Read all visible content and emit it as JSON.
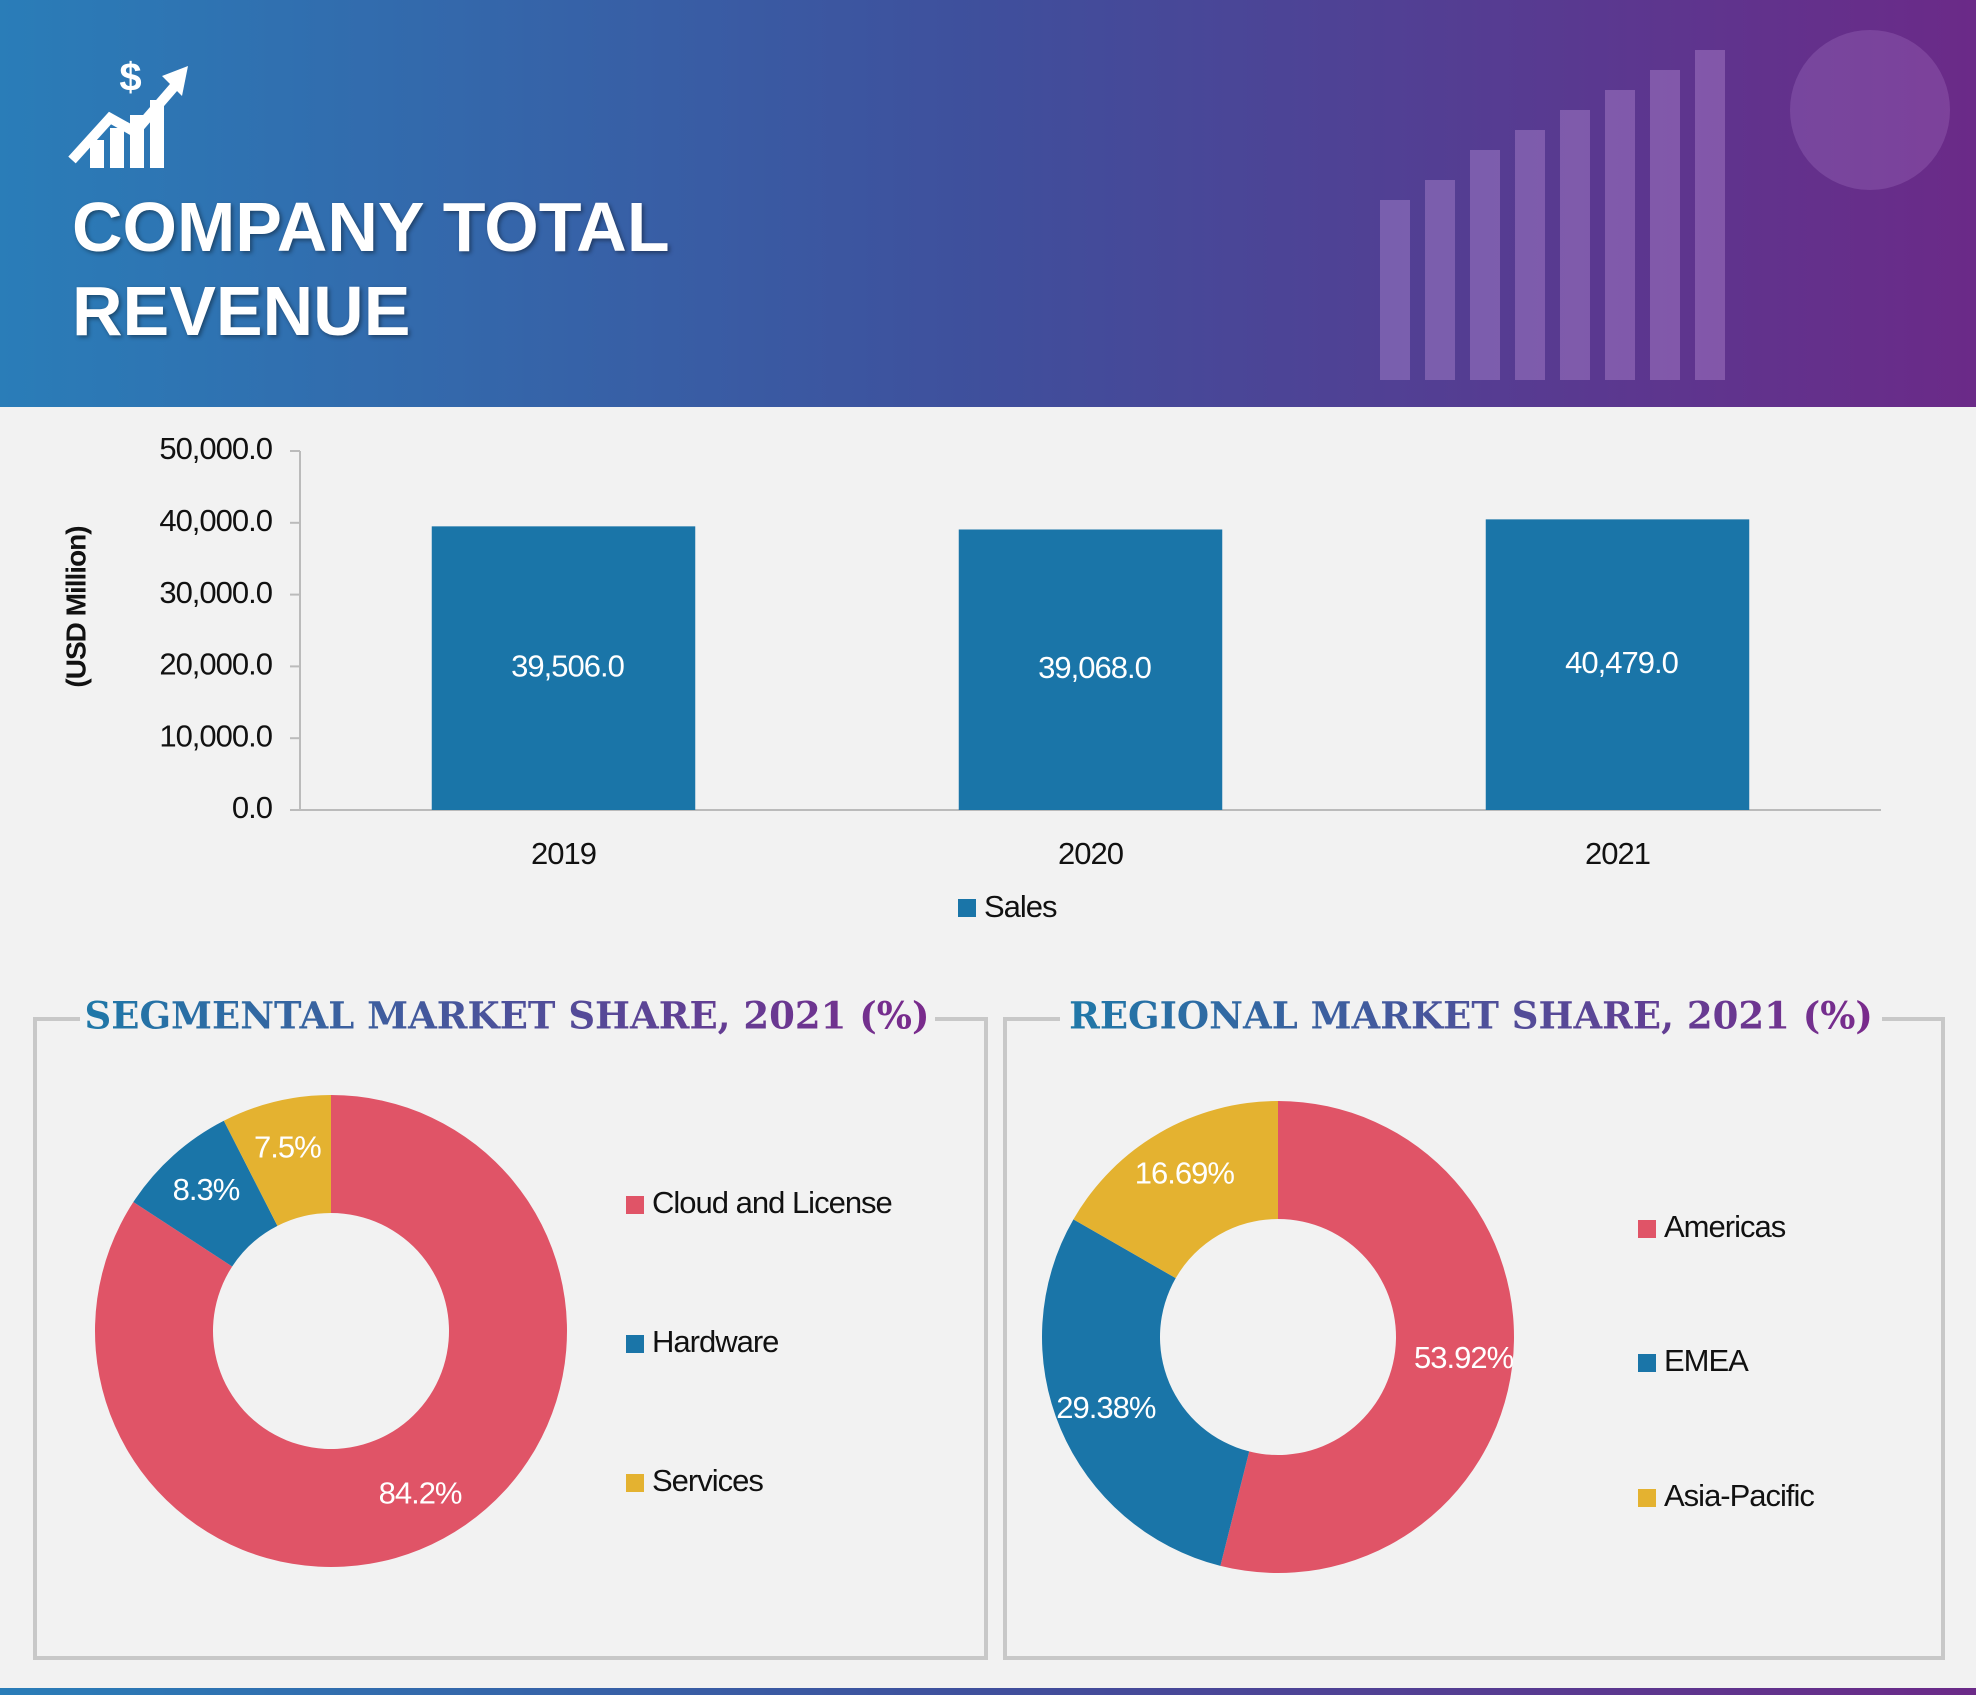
{
  "header": {
    "icon": "$",
    "title": "COMPANY TOTAL REVENUE"
  },
  "chart_data": [
    {
      "type": "bar",
      "ylabel": "(USD Million)",
      "categories": [
        "2019",
        "2020",
        "2021"
      ],
      "series": [
        {
          "name": "Sales",
          "color": "#1a75a8",
          "values": [
            39506,
            39068,
            40479
          ],
          "value_labels": [
            "39,506.0",
            "39,068.0",
            "40,479.0"
          ]
        }
      ],
      "ylim": [
        0,
        50000
      ],
      "yticks": [
        {
          "value": 0,
          "label": "0.0"
        },
        {
          "value": 10000,
          "label": "10,000.0"
        },
        {
          "value": 20000,
          "label": "20,000.0"
        },
        {
          "value": 30000,
          "label": "30,000.0"
        },
        {
          "value": 40000,
          "label": "40,000.0"
        },
        {
          "value": 50000,
          "label": "50,000.0"
        }
      ],
      "grid": false,
      "legend": "bottom"
    },
    {
      "type": "donut",
      "title": "SEGMENTAL MARKET SHARE, 2021 (%)",
      "categories": [
        "Cloud and License",
        "Hardware",
        "Services"
      ],
      "values": [
        84.2,
        8.3,
        7.5
      ],
      "value_labels": [
        "84.2%",
        "8.3%",
        "7.5%"
      ],
      "colors": [
        "#e05467",
        "#1a75a8",
        "#e4b230"
      ],
      "legend": "right"
    },
    {
      "type": "donut",
      "title": "REGIONAL MARKET SHARE, 2021 (%)",
      "categories": [
        "Americas",
        "EMEA",
        "Asia-Pacific"
      ],
      "values": [
        53.92,
        29.38,
        16.69
      ],
      "value_labels": [
        "53.92%",
        "29.38%",
        "16.69%"
      ],
      "colors": [
        "#e05467",
        "#1a75a8",
        "#e4b230"
      ],
      "legend": "right"
    }
  ]
}
